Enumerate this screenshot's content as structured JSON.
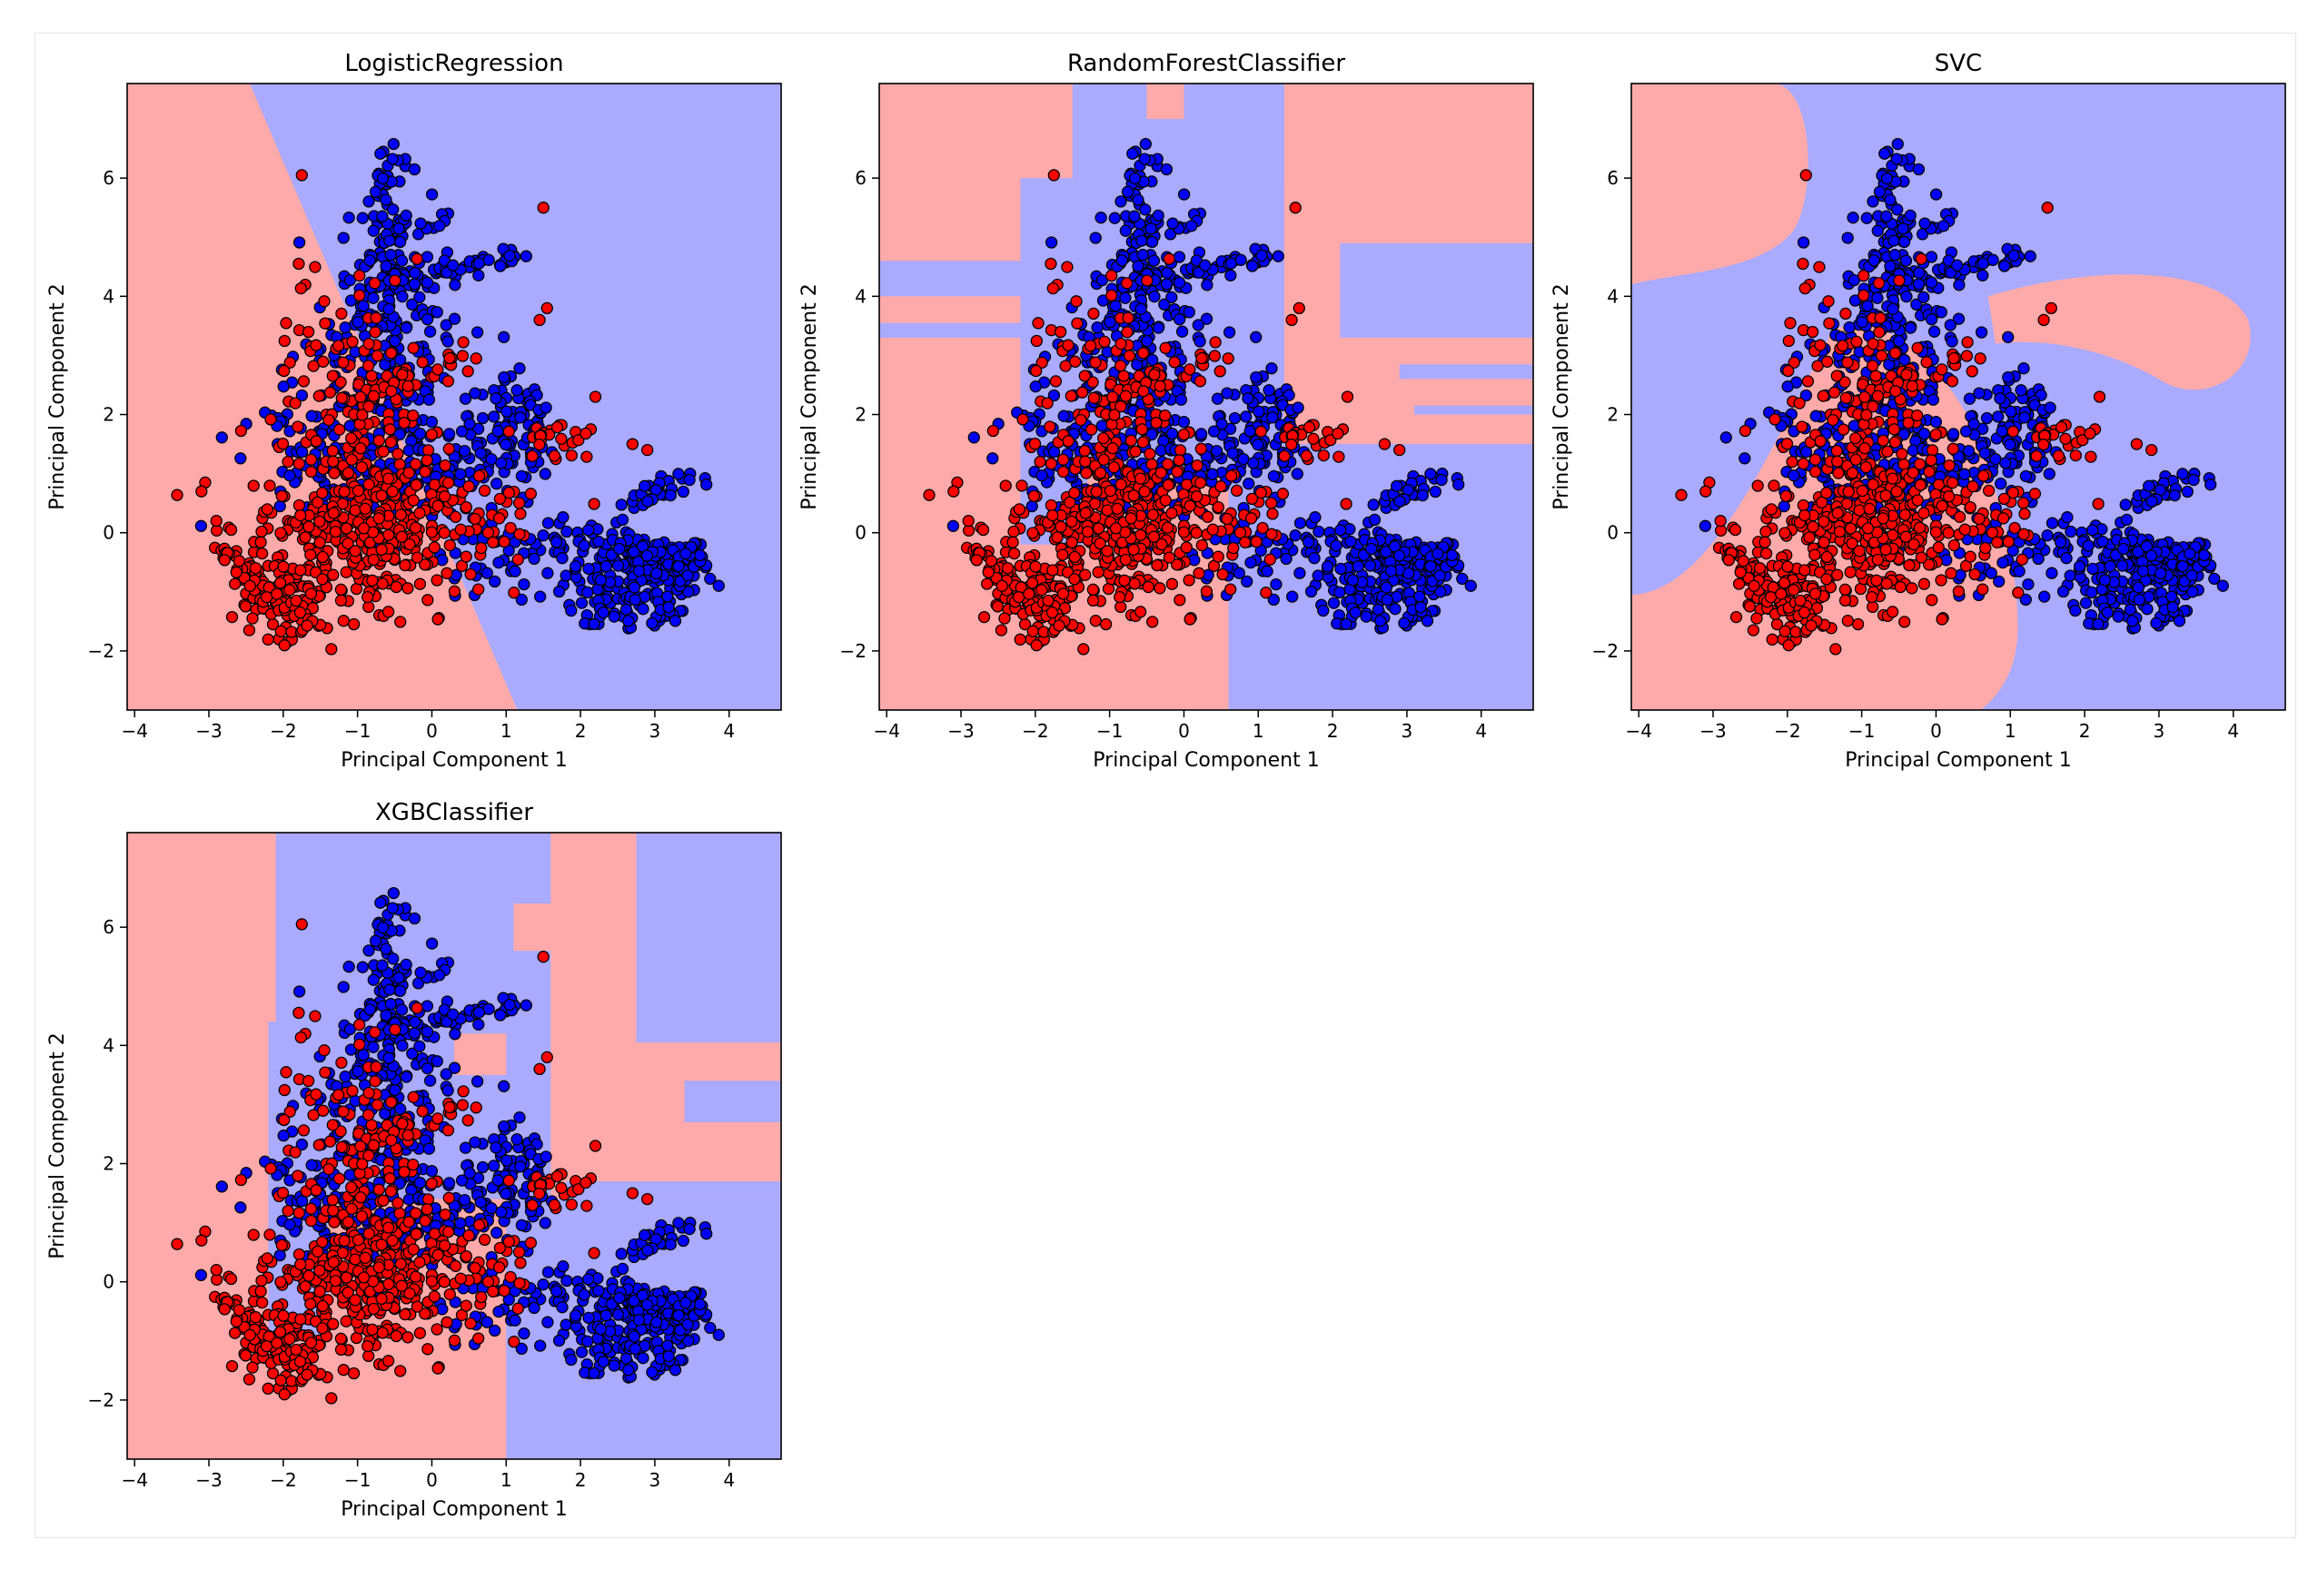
{
  "figure": {
    "colors": {
      "region_class_0": "#ffaaaa",
      "region_class_1": "#aaaaff",
      "points_class_0": "#ff0000",
      "points_class_1": "#0000ff",
      "point_edge": "#000000"
    }
  },
  "chart_data": [
    {
      "type": "scatter",
      "title": "LogisticRegression",
      "xlabel": "Principal Component 1",
      "ylabel": "Principal Component 2",
      "xlim": [
        -4.1,
        4.7
      ],
      "ylim": [
        -3.0,
        7.6
      ],
      "xticks": [
        "-4",
        "-3",
        "-2",
        "-1",
        "0",
        "1",
        "2",
        "3",
        "4"
      ],
      "yticks": [
        "-2",
        "0",
        "2",
        "4",
        "6"
      ],
      "background": "decision regions",
      "decision_boundary": "linear"
    },
    {
      "type": "scatter",
      "title": "RandomForestClassifier",
      "xlabel": "Principal Component 1",
      "ylabel": "Principal Component 2",
      "xlim": [
        -4.1,
        4.7
      ],
      "ylim": [
        -3.0,
        7.6
      ],
      "xticks": [
        "-4",
        "-3",
        "-2",
        "-1",
        "0",
        "1",
        "2",
        "3",
        "4"
      ],
      "yticks": [
        "-2",
        "0",
        "2",
        "4",
        "6"
      ],
      "background": "decision regions",
      "decision_boundary": "axis-aligned rectangles"
    },
    {
      "type": "scatter",
      "title": "SVC",
      "xlabel": "Principal Component 1",
      "ylabel": "Principal Component 2",
      "xlim": [
        -4.1,
        4.7
      ],
      "ylim": [
        -3.0,
        7.6
      ],
      "xticks": [
        "-4",
        "-3",
        "-2",
        "-1",
        "0",
        "1",
        "2",
        "3",
        "4"
      ],
      "yticks": [
        "-2",
        "0",
        "2",
        "4",
        "6"
      ],
      "background": "decision regions",
      "decision_boundary": "smooth curved"
    },
    {
      "type": "scatter",
      "title": "XGBClassifier",
      "xlabel": "Principal Component 1",
      "ylabel": "Principal Component 2",
      "xlim": [
        -4.1,
        4.7
      ],
      "ylim": [
        -3.0,
        7.6
      ],
      "xticks": [
        "-4",
        "-3",
        "-2",
        "-1",
        "0",
        "1",
        "2",
        "3",
        "4"
      ],
      "yticks": [
        "-2",
        "0",
        "2",
        "4",
        "6"
      ],
      "background": "decision regions",
      "decision_boundary": "axis-aligned rectangles"
    }
  ]
}
